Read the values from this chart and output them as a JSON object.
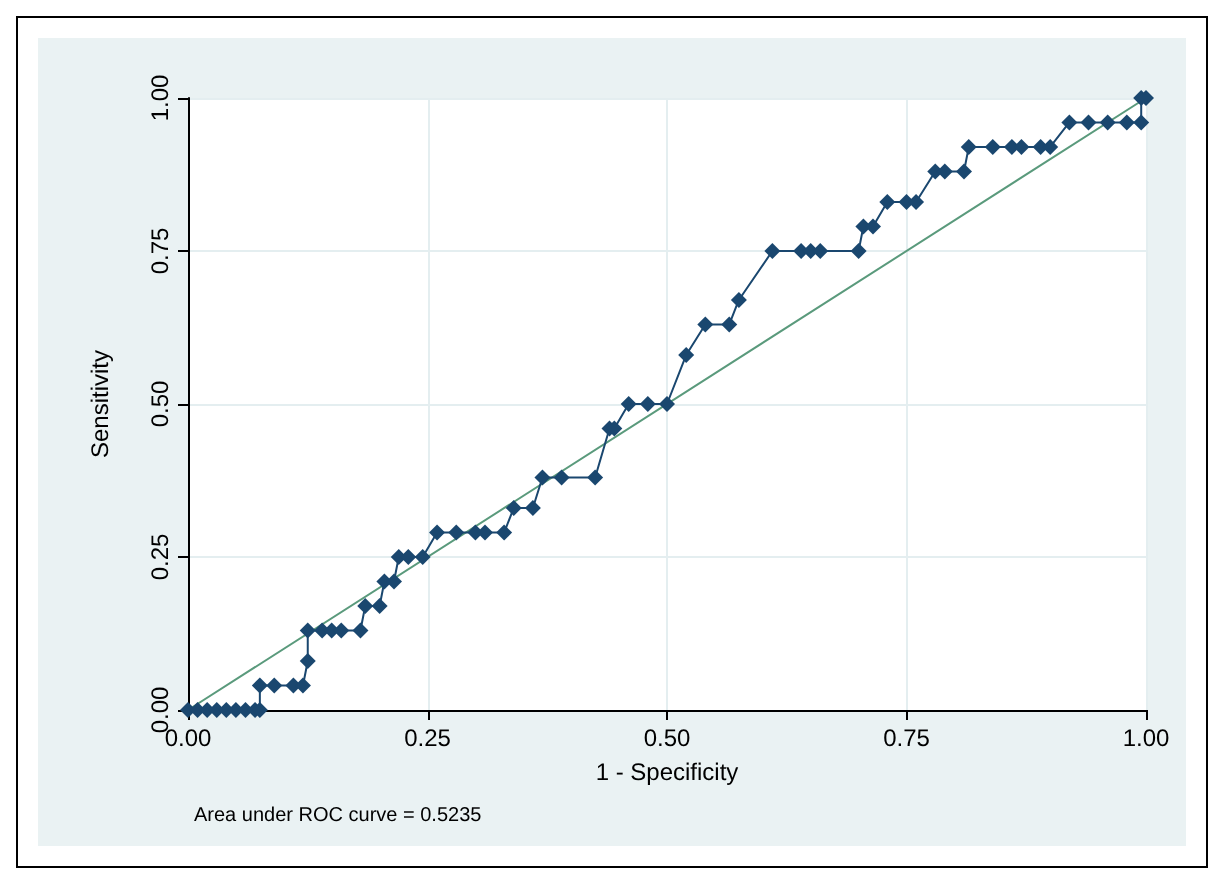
{
  "chart_data": {
    "type": "line",
    "xlabel": "1 - Specificity",
    "ylabel": "Sensitivity",
    "annotations": [
      "Area under ROC curve = 0.5235"
    ],
    "xlim": [
      0,
      1
    ],
    "ylim": [
      0,
      1
    ],
    "xticks": [
      {
        "value": 0,
        "label": "0.00"
      },
      {
        "value": 0.25,
        "label": "0.25"
      },
      {
        "value": 0.5,
        "label": "0.50"
      },
      {
        "value": 0.75,
        "label": "0.75"
      },
      {
        "value": 1,
        "label": "1.00"
      }
    ],
    "yticks": [
      {
        "value": 0,
        "label": "0.00"
      },
      {
        "value": 0.25,
        "label": "0.25"
      },
      {
        "value": 0.5,
        "label": "0.50"
      },
      {
        "value": 0.75,
        "label": "0.75"
      },
      {
        "value": 1,
        "label": "1.00"
      }
    ],
    "grid": true,
    "marker": "diamond",
    "line_style": "solid",
    "series": [
      {
        "color": "#1a476f",
        "x": [
          0,
          0.01,
          0.02,
          0.03,
          0.04,
          0.05,
          0.06,
          0.07,
          0.075,
          0.075,
          0.09,
          0.11,
          0.12,
          0.125,
          0.125,
          0.14,
          0.15,
          0.16,
          0.18,
          0.185,
          0.2,
          0.205,
          0.215,
          0.22,
          0.23,
          0.245,
          0.26,
          0.28,
          0.3,
          0.31,
          0.33,
          0.34,
          0.36,
          0.37,
          0.39,
          0.425,
          0.44,
          0.445,
          0.46,
          0.48,
          0.5,
          0.52,
          0.54,
          0.565,
          0.575,
          0.61,
          0.64,
          0.65,
          0.66,
          0.7,
          0.705,
          0.715,
          0.73,
          0.75,
          0.76,
          0.78,
          0.79,
          0.81,
          0.815,
          0.84,
          0.86,
          0.87,
          0.89,
          0.9,
          0.92,
          0.94,
          0.96,
          0.98,
          0.995,
          0.995,
          1
        ],
        "values": [
          0,
          0,
          0,
          0,
          0,
          0,
          0,
          0,
          0,
          0.04,
          0.04,
          0.04,
          0.04,
          0.08,
          0.13,
          0.13,
          0.13,
          0.13,
          0.13,
          0.17,
          0.17,
          0.21,
          0.21,
          0.25,
          0.25,
          0.25,
          0.29,
          0.29,
          0.29,
          0.29,
          0.29,
          0.33,
          0.33,
          0.38,
          0.38,
          0.38,
          0.46,
          0.46,
          0.5,
          0.5,
          0.5,
          0.58,
          0.63,
          0.63,
          0.67,
          0.75,
          0.75,
          0.75,
          0.75,
          0.75,
          0.79,
          0.79,
          0.83,
          0.83,
          0.83,
          0.88,
          0.88,
          0.88,
          0.92,
          0.92,
          0.92,
          0.92,
          0.92,
          0.92,
          0.96,
          0.96,
          0.96,
          0.96,
          0.96,
          1,
          1
        ]
      },
      {
        "color": "#5a9a7c",
        "marker": "none",
        "x": [
          0,
          1
        ],
        "values": [
          0,
          1
        ]
      }
    ]
  }
}
